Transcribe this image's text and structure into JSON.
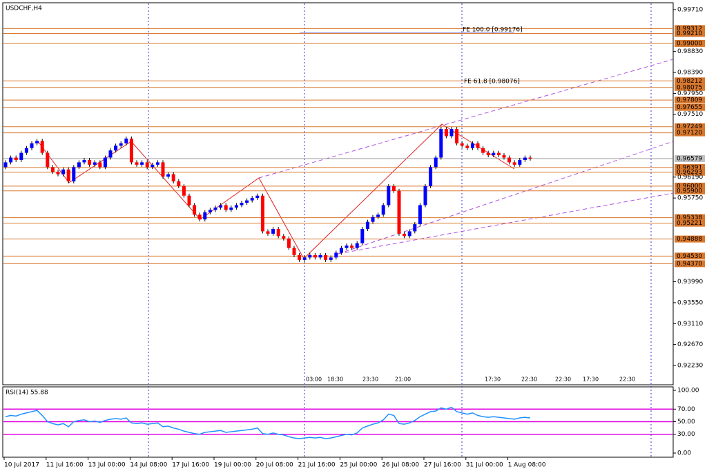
{
  "chart_data": {
    "type": "candlestick",
    "title": "USDCHF,H4",
    "categories": [
      "10 Jul 2017",
      null,
      null,
      null,
      null,
      null,
      null,
      null,
      "11 Jul 16:00",
      null,
      null,
      null,
      null,
      null,
      null,
      null,
      "13 Jul 00:00",
      null,
      null,
      null,
      null,
      null,
      null,
      null,
      "14 Jul 08:00",
      null,
      null,
      null,
      null,
      null,
      null,
      null,
      "17 Jul 16:00",
      null,
      null,
      null,
      null,
      null,
      null,
      null,
      "19 Jul 00:00",
      null,
      null,
      null,
      null,
      null,
      null,
      null,
      "20 Jul 08:00",
      null,
      null,
      null,
      null,
      null,
      null,
      null,
      "21 Jul 16:00",
      null,
      null,
      null,
      null,
      null,
      null,
      null,
      "25 Jul 00:00",
      null,
      null,
      null,
      null,
      null,
      null,
      null,
      "26 Jul 08:00",
      null,
      null,
      null,
      null,
      null,
      null,
      null,
      "27 Jul 16:00",
      null,
      null,
      null,
      null,
      null,
      null,
      null,
      "31 Jul 00:00",
      null,
      null,
      null,
      null,
      null,
      null,
      null,
      "1 Aug 08:00",
      null,
      null,
      null,
      null
    ],
    "open": [
      0.964,
      0.965,
      0.966,
      0.9655,
      0.967,
      0.968,
      0.969,
      0.9695,
      0.967,
      0.964,
      0.963,
      0.9625,
      0.9635,
      0.961,
      0.964,
      0.965,
      0.9655,
      0.9645,
      0.965,
      0.964,
      0.966,
      0.9675,
      0.9685,
      0.969,
      0.97,
      0.965,
      0.9645,
      0.965,
      0.964,
      0.9645,
      0.965,
      0.962,
      0.9625,
      0.961,
      0.96,
      0.958,
      0.956,
      0.954,
      0.953,
      0.9545,
      0.955,
      0.9555,
      0.956,
      0.955,
      0.9555,
      0.956,
      0.9565,
      0.957,
      0.9575,
      0.958,
      0.9505,
      0.95,
      0.951,
      0.9495,
      0.949,
      0.947,
      0.9455,
      0.9445,
      0.945,
      0.9455,
      0.945,
      0.9455,
      0.9445,
      0.945,
      0.946,
      0.947,
      0.9475,
      0.947,
      0.948,
      0.951,
      0.9525,
      0.9535,
      0.954,
      0.956,
      0.96,
      0.959,
      0.95,
      0.9495,
      0.9505,
      0.952,
      0.956,
      0.96,
      0.964,
      0.966,
      0.972,
      0.9705,
      0.972,
      0.969,
      0.9685,
      0.968,
      0.969,
      0.968,
      0.967,
      0.9665,
      0.967,
      0.9665,
      0.966,
      0.965,
      0.9645,
      0.9655,
      0.966
    ],
    "close": [
      0.965,
      0.966,
      0.9655,
      0.967,
      0.968,
      0.969,
      0.9695,
      0.967,
      0.964,
      0.963,
      0.9625,
      0.9635,
      0.961,
      0.964,
      0.965,
      0.9655,
      0.9645,
      0.965,
      0.964,
      0.966,
      0.9675,
      0.9685,
      0.969,
      0.97,
      0.965,
      0.9645,
      0.965,
      0.964,
      0.9645,
      0.965,
      0.962,
      0.9625,
      0.961,
      0.96,
      0.958,
      0.956,
      0.954,
      0.953,
      0.9545,
      0.955,
      0.9555,
      0.956,
      0.955,
      0.9555,
      0.956,
      0.9565,
      0.957,
      0.9575,
      0.958,
      0.9505,
      0.95,
      0.951,
      0.9495,
      0.949,
      0.947,
      0.9455,
      0.9445,
      0.945,
      0.9455,
      0.945,
      0.9455,
      0.9445,
      0.945,
      0.946,
      0.947,
      0.9475,
      0.947,
      0.948,
      0.951,
      0.9525,
      0.9535,
      0.954,
      0.956,
      0.96,
      0.959,
      0.95,
      0.9495,
      0.9505,
      0.952,
      0.956,
      0.96,
      0.964,
      0.966,
      0.972,
      0.9705,
      0.972,
      0.969,
      0.9685,
      0.968,
      0.969,
      0.968,
      0.967,
      0.9665,
      0.967,
      0.9665,
      0.966,
      0.965,
      0.9645,
      0.9655,
      0.966,
      0.9658
    ],
    "up_color": "#0000ff",
    "down_color": "#ff0000",
    "ylim": [
      0.91824,
      0.9984
    ],
    "yticks": [
      {
        "value": 0.9971,
        "label": "0.99710"
      },
      {
        "value": 0.9883,
        "label": "0.98830"
      },
      {
        "value": 0.9839,
        "label": "0.98390"
      },
      {
        "value": 0.9795,
        "label": "0.97950"
      },
      {
        "value": 0.9751,
        "label": "0.97510"
      },
      {
        "value": 0.9619,
        "label": "0.96190"
      },
      {
        "value": 0.9575,
        "label": "0.95750"
      },
      {
        "value": 0.9399,
        "label": "0.93990"
      },
      {
        "value": 0.9355,
        "label": "0.93550"
      },
      {
        "value": 0.9311,
        "label": "0.93110"
      },
      {
        "value": 0.9267,
        "label": "0.92670"
      },
      {
        "value": 0.9223,
        "label": "0.92230"
      }
    ],
    "levels": [
      {
        "value": 0.99312,
        "label": "0.99312"
      },
      {
        "value": 0.9921,
        "label": "0.99210"
      },
      {
        "value": 0.99,
        "label": "0.99000"
      },
      {
        "value": 0.98212,
        "label": "0.98212"
      },
      {
        "value": 0.98075,
        "label": "0.98075"
      },
      {
        "value": 0.97809,
        "label": "0.97809"
      },
      {
        "value": 0.97655,
        "label": "0.97655"
      },
      {
        "value": 0.97249,
        "label": "0.97249"
      },
      {
        "value": 0.9712,
        "label": "0.97120"
      },
      {
        "value": 0.96391,
        "label": "0.96391"
      },
      {
        "value": 0.96293,
        "label": "0.96293"
      },
      {
        "value": 0.96,
        "label": "0.96000"
      },
      {
        "value": 0.959,
        "label": "0.95900"
      },
      {
        "value": 0.95338,
        "label": "0.95338"
      },
      {
        "value": 0.95221,
        "label": "0.95221"
      },
      {
        "value": 0.94888,
        "label": "0.94888"
      },
      {
        "value": 0.9453,
        "label": "0.94530"
      },
      {
        "value": 0.9437,
        "label": "0.94370"
      }
    ],
    "level_color": "#d9782d",
    "current": {
      "value": 0.96579,
      "label": "0.96579"
    },
    "annotations": [
      "FE 100.0 [0.99176]",
      "FE 61.8 [0.98076]"
    ],
    "time_labels": [
      "03:00",
      "18:30",
      "23:30",
      "21:00",
      "17:30",
      "22:30",
      "22:30",
      "17:30",
      "22:30"
    ],
    "indicator": {
      "title": "RSI(14) 55.88",
      "color": "#1e90ff",
      "level_color": "#e000e0",
      "ylim": [
        0,
        100
      ],
      "yticks": [
        {
          "value": 100,
          "label": "100.00"
        },
        {
          "value": 70,
          "label": "70.00"
        },
        {
          "value": 50,
          "label": "50.00"
        },
        {
          "value": 30,
          "label": "30.00"
        },
        {
          "value": 0,
          "label": "0.00"
        }
      ],
      "levels": [
        70,
        50,
        30
      ],
      "values": [
        58,
        60,
        59,
        62,
        64,
        66,
        68,
        60,
        50,
        47,
        45,
        47,
        42,
        50,
        52,
        53,
        50,
        51,
        49,
        52,
        54,
        55,
        54,
        56,
        48,
        47,
        48,
        46,
        47,
        48,
        42,
        43,
        40,
        38,
        35,
        33,
        31,
        30,
        33,
        34,
        35,
        36,
        33,
        34,
        35,
        36,
        37,
        38,
        40,
        31,
        30,
        32,
        30,
        29,
        26,
        24,
        23,
        24,
        25,
        24,
        25,
        23,
        24,
        26,
        28,
        30,
        29,
        32,
        40,
        43,
        46,
        48,
        53,
        62,
        60,
        47,
        46,
        48,
        52,
        58,
        62,
        66,
        67,
        72,
        70,
        73,
        66,
        64,
        62,
        64,
        60,
        58,
        57,
        58,
        57,
        56,
        55,
        54,
        56,
        57,
        55.88
      ]
    }
  }
}
